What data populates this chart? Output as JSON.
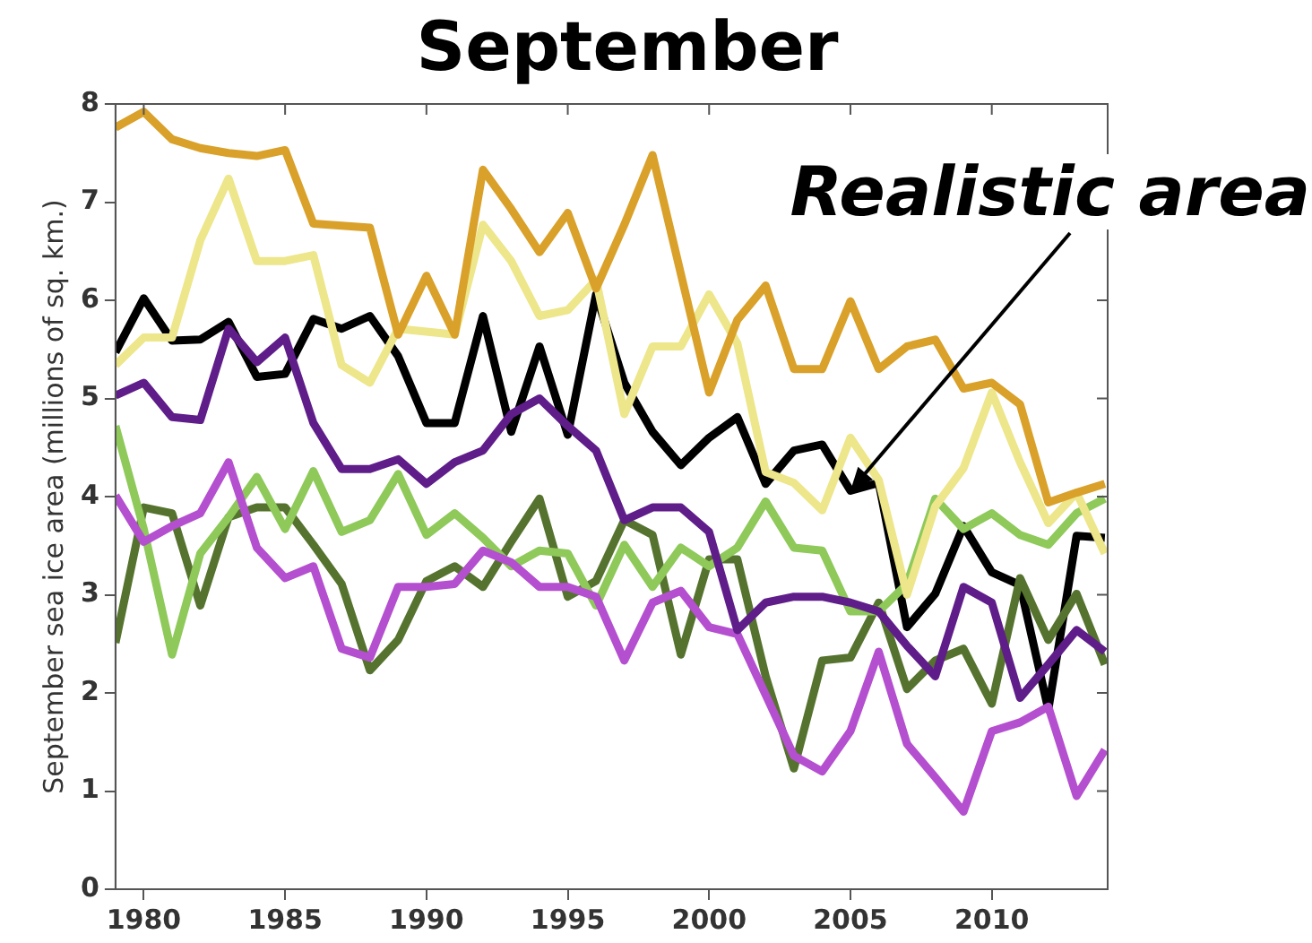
{
  "chart_data": {
    "type": "line",
    "title": "September",
    "ylabel": "September sea ice area (millions of sq. km.)",
    "x": [
      1979,
      1980,
      1981,
      1982,
      1983,
      1984,
      1985,
      1986,
      1987,
      1988,
      1989,
      1990,
      1991,
      1992,
      1993,
      1994,
      1995,
      1996,
      1997,
      1998,
      1999,
      2000,
      2001,
      2002,
      2003,
      2004,
      2005,
      2006,
      2007,
      2008,
      2009,
      2010,
      2011,
      2012,
      2013,
      2014
    ],
    "xlim": [
      1979,
      2014.1
    ],
    "xticks": [
      1980,
      1985,
      1990,
      1995,
      2000,
      2005,
      2010
    ],
    "ylim": [
      0,
      8
    ],
    "yticks": [
      0,
      1,
      2,
      3,
      4,
      5,
      6,
      7,
      8
    ],
    "grid": false,
    "legend": false,
    "marker": "none",
    "line_style": "solid",
    "series": [
      {
        "color": "#d9a12a",
        "values": [
          7.76,
          7.92,
          7.64,
          7.55,
          7.5,
          7.47,
          7.53,
          6.78,
          6.76,
          6.74,
          5.65,
          6.25,
          5.65,
          7.33,
          6.93,
          6.49,
          6.89,
          6.12,
          6.77,
          7.48,
          6.27,
          5.06,
          5.8,
          6.15,
          5.3,
          5.3,
          5.99,
          5.3,
          5.53,
          5.6,
          5.1,
          5.16,
          4.94,
          3.94,
          4.04,
          4.13
        ]
      },
      {
        "color": "#ede68a",
        "values": [
          5.34,
          5.62,
          5.62,
          6.61,
          7.24,
          6.4,
          6.4,
          6.46,
          5.34,
          5.16,
          5.71,
          5.68,
          5.65,
          6.77,
          6.4,
          5.84,
          5.9,
          6.21,
          4.84,
          5.53,
          5.53,
          6.06,
          5.56,
          4.25,
          4.14,
          3.86,
          4.6,
          4.17,
          3.0,
          3.9,
          4.29,
          5.06,
          4.35,
          3.73,
          4.04,
          3.42
        ]
      },
      {
        "color": "#5f1d8a",
        "values": [
          5.03,
          5.16,
          4.81,
          4.78,
          5.71,
          5.37,
          5.62,
          4.75,
          4.28,
          4.28,
          4.38,
          4.13,
          4.35,
          4.47,
          4.84,
          5.0,
          4.72,
          4.47,
          3.76,
          3.89,
          3.89,
          3.64,
          2.64,
          2.92,
          2.98,
          2.98,
          2.92,
          2.83,
          2.48,
          2.17,
          3.08,
          2.92,
          1.95,
          2.29,
          2.64,
          2.42
        ]
      },
      {
        "color": "#b44fd0",
        "values": [
          4.01,
          3.54,
          3.7,
          3.83,
          4.35,
          3.48,
          3.17,
          3.29,
          2.45,
          2.36,
          3.08,
          3.08,
          3.11,
          3.45,
          3.33,
          3.08,
          3.08,
          2.98,
          2.33,
          2.92,
          3.04,
          2.67,
          2.6,
          1.98,
          1.36,
          1.2,
          1.61,
          2.42,
          1.48,
          1.14,
          0.79,
          1.61,
          1.7,
          1.86,
          0.95,
          1.42
        ]
      },
      {
        "color": "#8ec95a",
        "values": [
          4.72,
          3.67,
          2.39,
          3.42,
          3.79,
          4.2,
          3.67,
          4.26,
          3.64,
          3.76,
          4.23,
          3.61,
          3.83,
          3.58,
          3.29,
          3.45,
          3.42,
          2.89,
          3.51,
          3.08,
          3.48,
          3.29,
          3.48,
          3.95,
          3.48,
          3.45,
          2.83,
          2.83,
          3.11,
          3.98,
          3.67,
          3.83,
          3.61,
          3.51,
          3.83,
          3.98
        ]
      },
      {
        "color": "#55732e",
        "values": [
          2.51,
          3.89,
          3.83,
          2.89,
          3.79,
          3.89,
          3.89,
          3.51,
          3.11,
          2.23,
          2.54,
          3.14,
          3.29,
          3.08,
          3.54,
          3.98,
          2.98,
          3.14,
          3.76,
          3.61,
          2.39,
          3.36,
          3.36,
          2.17,
          1.23,
          2.33,
          2.36,
          2.92,
          2.04,
          2.33,
          2.45,
          1.89,
          3.17,
          2.54,
          3.01,
          2.29
        ]
      },
      {
        "color": "#000000",
        "values": [
          5.47,
          6.02,
          5.59,
          5.6,
          5.78,
          5.22,
          5.25,
          5.81,
          5.71,
          5.84,
          5.43,
          4.75,
          4.75,
          5.84,
          4.66,
          5.53,
          4.63,
          6.06,
          5.16,
          4.66,
          4.32,
          4.6,
          4.81,
          4.13,
          4.47,
          4.53,
          4.06,
          4.14,
          2.67,
          3.01,
          3.7,
          3.23,
          3.1,
          1.83,
          3.6,
          3.58
        ]
      }
    ],
    "annotations": [
      {
        "text": "Realistic area",
        "x": 2005,
        "y": 4.06
      }
    ]
  }
}
